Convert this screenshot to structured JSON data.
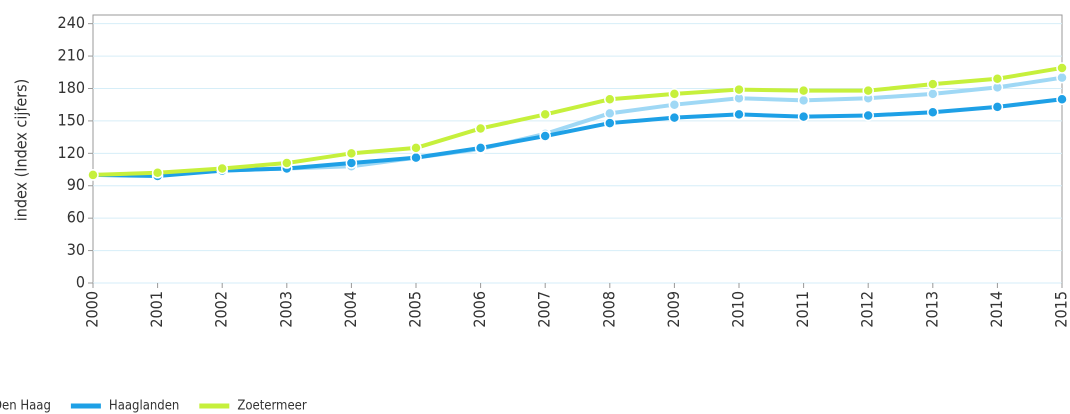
{
  "chart_data": {
    "type": "line",
    "y_label": "index (Index cijfers)",
    "categories": [
      "2000",
      "2001",
      "2002",
      "2003",
      "2004",
      "2005",
      "2006",
      "2007",
      "2008",
      "2009",
      "2010",
      "2011",
      "2012",
      "2013",
      "2014",
      "2015"
    ],
    "series": [
      {
        "name": "Den Haag",
        "color": "#9fd8f5",
        "values": [
          100,
          100,
          104,
          106,
          108,
          116,
          124,
          138,
          157,
          165,
          171,
          169,
          171,
          175,
          181,
          190
        ]
      },
      {
        "name": "Haaglanden",
        "color": "#1ea0e6",
        "values": [
          100,
          99,
          104,
          106,
          111,
          116,
          125,
          136,
          148,
          153,
          156,
          154,
          155,
          158,
          163,
          170
        ]
      },
      {
        "name": "Zoetermeer",
        "color": "#c6f03c",
        "values": [
          100,
          102,
          106,
          111,
          120,
          125,
          143,
          156,
          170,
          175,
          179,
          178,
          178,
          184,
          189,
          199
        ]
      }
    ],
    "ylim": [
      0,
      248
    ],
    "yticks": [
      0,
      30,
      60,
      90,
      120,
      150,
      180,
      210,
      240
    ],
    "grid": true
  }
}
